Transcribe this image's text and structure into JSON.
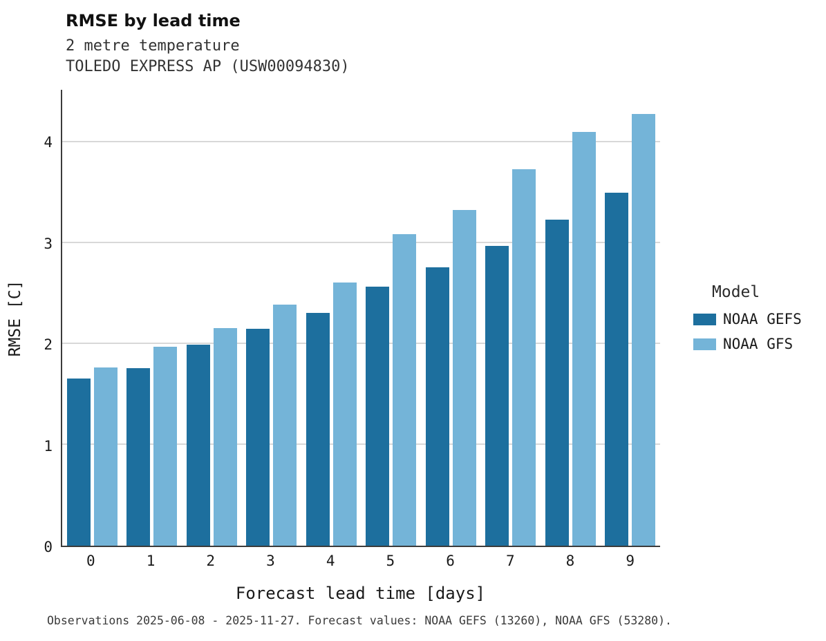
{
  "header": {
    "title": "RMSE by lead time",
    "subtitle": "2 metre temperature",
    "station": "TOLEDO EXPRESS AP (USW00094830)"
  },
  "legend": {
    "title": "Model"
  },
  "caption": "Observations 2025-06-08 - 2025-11-27. Forecast values: NOAA GEFS (13260), NOAA GFS (53280).",
  "colors": {
    "noaa_gefs": "#1d6f9e",
    "noaa_gfs": "#74b4d8",
    "spine": "#3b3b3b",
    "gridline": "#d8d8d8"
  },
  "chart_data": {
    "type": "bar",
    "title": "RMSE by lead time",
    "subtitle": "2 metre temperature",
    "station": "TOLEDO EXPRESS AP (USW00094830)",
    "categories": [
      "0",
      "1",
      "2",
      "3",
      "4",
      "5",
      "6",
      "7",
      "8",
      "9"
    ],
    "series": [
      {
        "name": "NOAA GEFS",
        "color": "#1d6f9e",
        "values": [
          1.66,
          1.76,
          1.99,
          2.15,
          2.31,
          2.57,
          2.76,
          2.97,
          3.23,
          3.5
        ]
      },
      {
        "name": "NOAA GFS",
        "color": "#74b4d8",
        "values": [
          1.77,
          1.97,
          2.16,
          2.39,
          2.61,
          3.09,
          3.33,
          3.73,
          4.1,
          4.28
        ]
      }
    ],
    "xlabel": "Forecast lead time [days]",
    "ylabel": "RMSE [C]",
    "ylim": [
      0,
      4.52
    ],
    "yticks": [
      0,
      1,
      2,
      3,
      4
    ],
    "grid": true,
    "legend_title": "Model",
    "legend_position": "right"
  }
}
